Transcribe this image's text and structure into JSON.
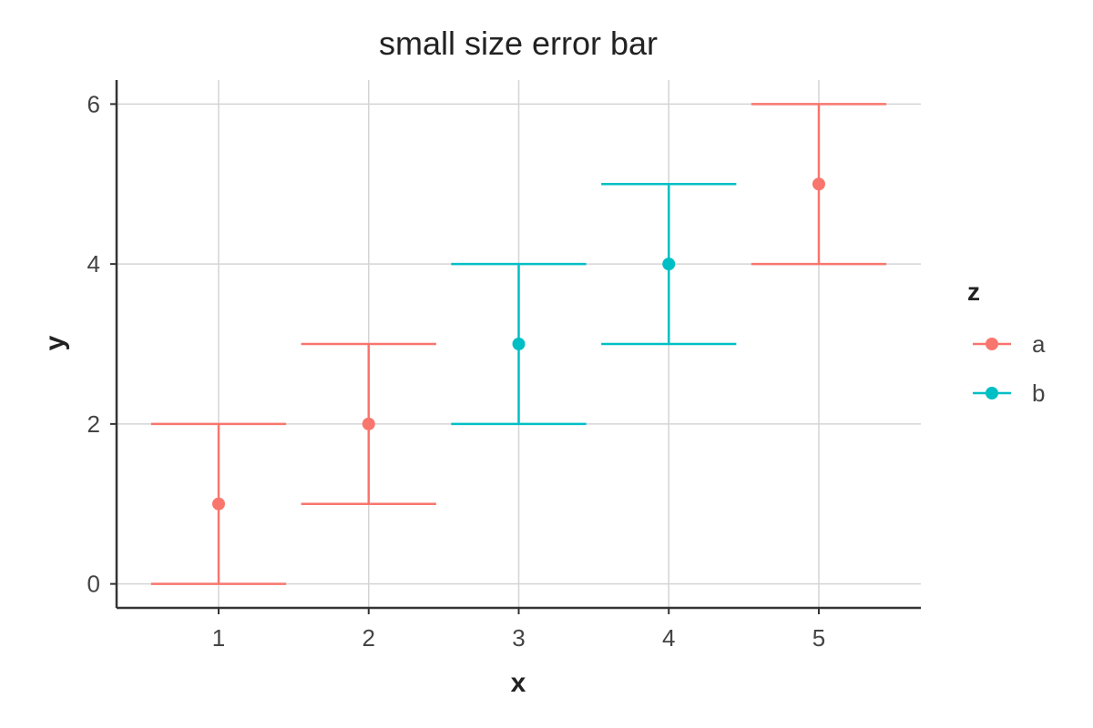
{
  "chart_data": {
    "type": "scatter",
    "title": "small size error bar",
    "xlabel": "x",
    "ylabel": "y",
    "xlim": [
      0.32,
      5.68
    ],
    "ylim": [
      -0.3,
      6.3
    ],
    "x_ticks": [
      1,
      2,
      3,
      4,
      5
    ],
    "y_ticks": [
      0,
      2,
      4,
      6
    ],
    "grid": true,
    "legend": {
      "title": "z",
      "position": "right"
    },
    "series": [
      {
        "name": "a",
        "color": "#F8766D",
        "points": [
          {
            "x": 1,
            "y": 1,
            "ymin": 0,
            "ymax": 2
          },
          {
            "x": 2,
            "y": 2,
            "ymin": 1,
            "ymax": 3
          },
          {
            "x": 5,
            "y": 5,
            "ymin": 4,
            "ymax": 6
          }
        ]
      },
      {
        "name": "b",
        "color": "#00BFC4",
        "points": [
          {
            "x": 3,
            "y": 3,
            "ymin": 2,
            "ymax": 4
          },
          {
            "x": 4,
            "y": 4,
            "ymin": 3,
            "ymax": 5
          }
        ]
      }
    ],
    "errorbar_width": 0.9
  }
}
